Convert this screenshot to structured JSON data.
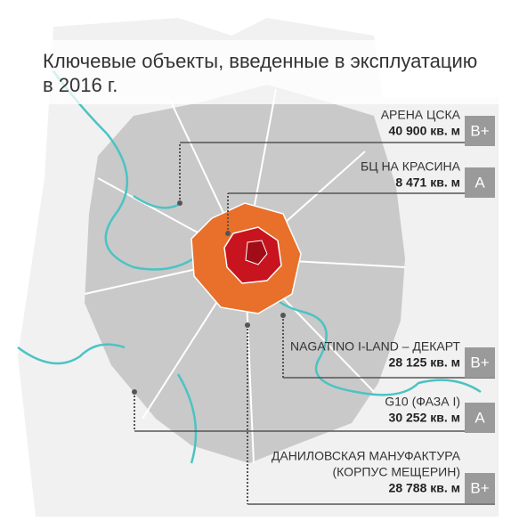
{
  "title": [
    "Ключевые объекты, введенные в эксплуатацию",
    "в 2016 г."
  ],
  "items": [
    {
      "name": [
        "АРЕНА ЦСКА"
      ],
      "area": "40 900 кв. м",
      "class": "B+"
    },
    {
      "name": [
        "БЦ НА КРАСИНА"
      ],
      "area": "8 471 кв. м",
      "class": "A"
    },
    {
      "name": [
        "NAGATINO I-LAND – ДЕКАРТ"
      ],
      "area": "28 125 кв. м",
      "class": "B+"
    },
    {
      "name": [
        "G10 (ФАЗА I)"
      ],
      "area": "30 252 кв. м",
      "class": "A"
    },
    {
      "name": [
        "ДАНИЛОВСКАЯ МАНУФАКТУРА",
        "(КОРПУС МЕЩЕРИН)"
      ],
      "area": "28 788 кв. м",
      "class": "B+"
    }
  ]
}
